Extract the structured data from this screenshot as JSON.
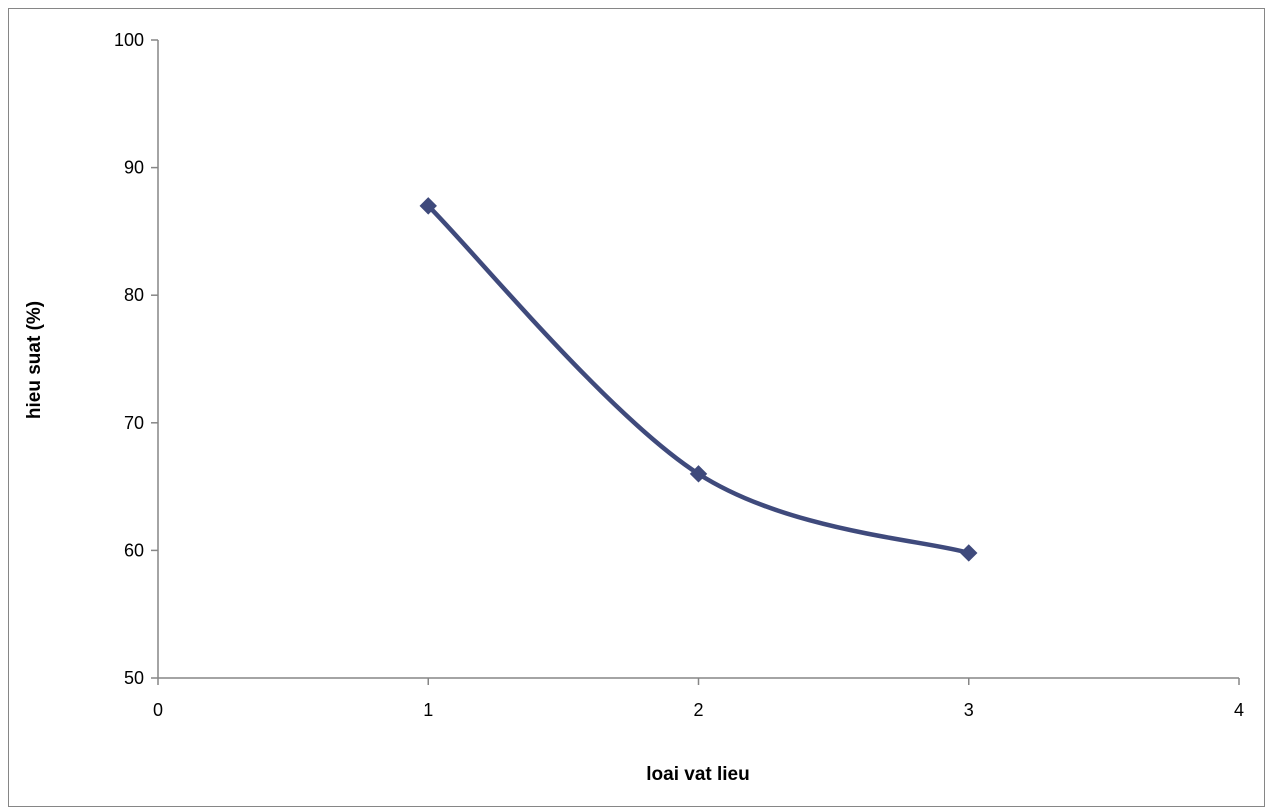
{
  "chart_data": {
    "type": "line",
    "title": "",
    "xlabel": "loai vat lieu",
    "ylabel": "hieu suat (%)",
    "xlim": [
      0,
      4
    ],
    "ylim": [
      50,
      100
    ],
    "x_ticks": [
      0,
      1,
      2,
      3,
      4
    ],
    "y_ticks": [
      50,
      60,
      70,
      80,
      90,
      100
    ],
    "grid": false,
    "legend": "none",
    "smooth": true,
    "series": [
      {
        "color": "#3F4A7C",
        "marker": "diamond",
        "x": [
          1,
          2,
          3
        ],
        "y": [
          87,
          66,
          59.8
        ]
      }
    ]
  }
}
